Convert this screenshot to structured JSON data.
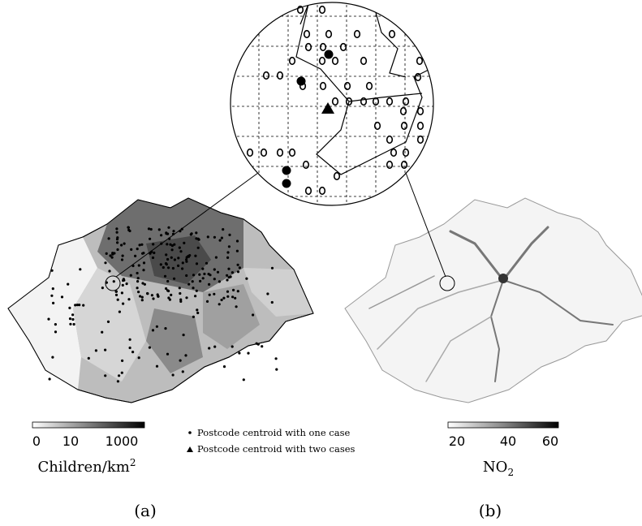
{
  "panel_a": {
    "colorbar": {
      "ticks": [
        "0",
        "10",
        "1000"
      ],
      "label": "Children/km",
      "label_superscript": "2"
    },
    "caption": "(a)"
  },
  "legend": {
    "one_case": "Postcode centroid with one case",
    "two_cases": "Postcode centroid with two cases"
  },
  "panel_b": {
    "colorbar": {
      "ticks": [
        "20",
        "40",
        "60"
      ],
      "label": "NO",
      "label_subscript": "2"
    },
    "caption": "(b)"
  }
}
